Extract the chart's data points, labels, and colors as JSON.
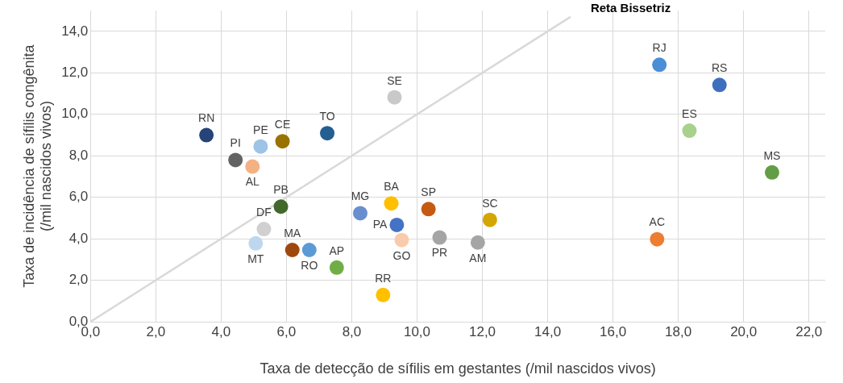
{
  "chart_data": {
    "type": "scatter",
    "xlabel": "Taxa de detecção de sífilis em gestantes (/mil nascidos vivos)",
    "ylabel": "Taxa de incidência de sífilis congênita\n(/mil nascidos vivos)",
    "xlim": [
      0,
      22.5
    ],
    "ylim": [
      0,
      15
    ],
    "xticks": [
      {
        "value": 0,
        "label": "0,0"
      },
      {
        "value": 2,
        "label": "2,0"
      },
      {
        "value": 4,
        "label": "4,0"
      },
      {
        "value": 6,
        "label": "6,0"
      },
      {
        "value": 8,
        "label": "8,0"
      },
      {
        "value": 10,
        "label": "10,0"
      },
      {
        "value": 12,
        "label": "12,0"
      },
      {
        "value": 14,
        "label": "14,0"
      },
      {
        "value": 16,
        "label": "16,0"
      },
      {
        "value": 18,
        "label": "18,0"
      },
      {
        "value": 20,
        "label": "20,0"
      },
      {
        "value": 22,
        "label": "22,0"
      }
    ],
    "yticks": [
      {
        "value": 0,
        "label": "0,0"
      },
      {
        "value": 2,
        "label": "2,0"
      },
      {
        "value": 4,
        "label": "4,0"
      },
      {
        "value": 6,
        "label": "6,0"
      },
      {
        "value": 8,
        "label": "8,0"
      },
      {
        "value": 10,
        "label": "10,0"
      },
      {
        "value": 12,
        "label": "12,0"
      },
      {
        "value": 14,
        "label": "14,0"
      }
    ],
    "grid": true,
    "series": [
      {
        "marker": "circle",
        "x": [
          3.55,
          4.44,
          5.21,
          5.88,
          4.96,
          7.25,
          9.31,
          5.83,
          5.31,
          5.06,
          6.18,
          6.7,
          7.54,
          8.26,
          9.21,
          9.38,
          9.53,
          8.96,
          10.35,
          10.69,
          11.86,
          12.23,
          17.35,
          17.42,
          19.26,
          18.34,
          20.87
        ],
        "values": [
          9.0,
          7.8,
          8.45,
          8.7,
          7.48,
          9.09,
          10.82,
          5.55,
          4.47,
          3.78,
          3.46,
          3.46,
          2.61,
          5.23,
          5.71,
          4.67,
          3.94,
          1.29,
          5.43,
          4.06,
          3.82,
          4.91,
          3.98,
          12.39,
          11.42,
          9.21,
          7.2
        ],
        "colors": [
          "#264478",
          "#636363",
          "#9dc3e6",
          "#997300",
          "#f4b183",
          "#255e91",
          "#c9c9c9",
          "#43682b",
          "#d0d0d0",
          "#bdd7ee",
          "#9e480e",
          "#5b9bd5",
          "#70ad47",
          "#698ed0",
          "#ffc000",
          "#4472c4",
          "#f8cbad",
          "#ffc000",
          "#c55a11",
          "#a5a5a5",
          "#a5a5a5",
          "#d4a600",
          "#ed7d31",
          "#4a8fd6",
          "#3e6fbf",
          "#a9d18e",
          "#639d45"
        ]
      },
      {
        "type": "line",
        "name": "Reta Bissetriz",
        "color": "#d9d9d9",
        "marker": "none",
        "x": [
          0,
          14.7
        ],
        "values": [
          0,
          14.7
        ]
      }
    ],
    "annotations": [
      {
        "text": "RN",
        "x": 3.55,
        "y": 9.0
      },
      {
        "text": "PI",
        "x": 4.44,
        "y": 7.8
      },
      {
        "text": "PE",
        "x": 5.21,
        "y": 8.45
      },
      {
        "text": "CE",
        "x": 5.88,
        "y": 8.7
      },
      {
        "text": "AL",
        "x": 4.96,
        "y": 7.48
      },
      {
        "text": "TO",
        "x": 7.25,
        "y": 9.09
      },
      {
        "text": "SE",
        "x": 9.31,
        "y": 10.82
      },
      {
        "text": "PB",
        "x": 5.83,
        "y": 5.55
      },
      {
        "text": "DF",
        "x": 5.31,
        "y": 4.47
      },
      {
        "text": "MT",
        "x": 5.06,
        "y": 3.78
      },
      {
        "text": "MA",
        "x": 6.18,
        "y": 3.46
      },
      {
        "text": "RO",
        "x": 6.7,
        "y": 3.46
      },
      {
        "text": "AP",
        "x": 7.54,
        "y": 2.61
      },
      {
        "text": "MG",
        "x": 8.26,
        "y": 5.23
      },
      {
        "text": "BA",
        "x": 9.21,
        "y": 5.71
      },
      {
        "text": "PA",
        "x": 9.38,
        "y": 4.67
      },
      {
        "text": "GO",
        "x": 9.53,
        "y": 3.94
      },
      {
        "text": "RR",
        "x": 8.96,
        "y": 1.29
      },
      {
        "text": "SP",
        "x": 10.35,
        "y": 5.43
      },
      {
        "text": "PR",
        "x": 10.69,
        "y": 4.06
      },
      {
        "text": "AM",
        "x": 11.86,
        "y": 3.82
      },
      {
        "text": "SC",
        "x": 12.23,
        "y": 4.91
      },
      {
        "text": "AC",
        "x": 17.35,
        "y": 3.98
      },
      {
        "text": "RJ",
        "x": 17.42,
        "y": 12.39
      },
      {
        "text": "RS",
        "x": 19.26,
        "y": 11.42
      },
      {
        "text": "ES",
        "x": 18.34,
        "y": 9.21
      },
      {
        "text": "MS",
        "x": 20.87,
        "y": 7.2
      }
    ]
  }
}
